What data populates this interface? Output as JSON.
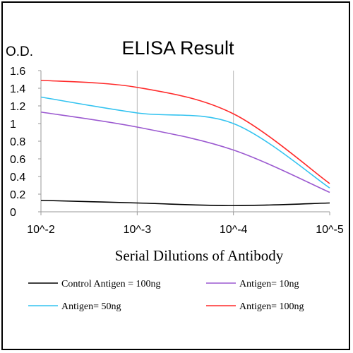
{
  "chart_data": {
    "type": "line",
    "title": "ELISA Result",
    "ylabel": "O.D.",
    "xlabel": "Serial Dilutions  of Antibody",
    "x_tick_labels": [
      "10^-2",
      "10^-3",
      "10^-4",
      "10^-5"
    ],
    "x_log10": [
      -2,
      -3,
      -4,
      -5
    ],
    "y_ticks": [
      0,
      0.2,
      0.4,
      0.6,
      0.8,
      1,
      1.2,
      1.4,
      1.6
    ],
    "y_tick_labels": [
      "0",
      "0.2",
      "0.4",
      "0.6",
      "0.8",
      "1",
      "1.2",
      "1.4",
      "1.6"
    ],
    "ylim": [
      0,
      1.6
    ],
    "grid": "vertical",
    "legend_position": "bottom",
    "series": [
      {
        "name": "Control Antigen = 100ng",
        "color": "#000000",
        "x_log10": [
          -2,
          -3,
          -4,
          -5
        ],
        "values": [
          0.13,
          0.1,
          0.07,
          0.1
        ]
      },
      {
        "name": "Antigen= 10ng",
        "color": "#9b59d0",
        "x_log10": [
          -2,
          -3,
          -4,
          -5
        ],
        "values": [
          1.13,
          0.96,
          0.7,
          0.22
        ]
      },
      {
        "name": "Antigen= 50ng",
        "color": "#33c3f0",
        "x_log10": [
          -2,
          -3,
          -4,
          -5
        ],
        "values": [
          1.3,
          1.12,
          1.0,
          0.27
        ]
      },
      {
        "name": "Antigen= 100ng",
        "color": "#ff2a2a",
        "x_log10": [
          -2,
          -3,
          -4,
          -5
        ],
        "values": [
          1.49,
          1.41,
          1.11,
          0.32
        ]
      }
    ]
  }
}
